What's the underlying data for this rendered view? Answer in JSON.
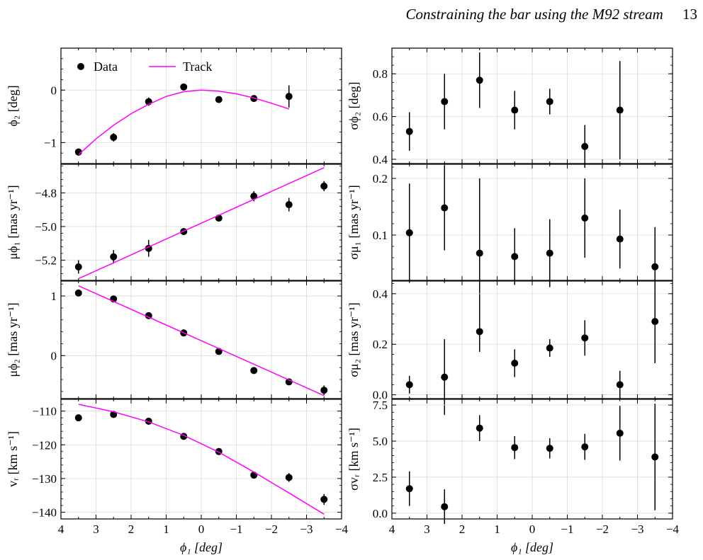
{
  "header": {
    "title": "Constraining the bar using the M92 stream",
    "page_number": "13"
  },
  "colors": {
    "data": "#000000",
    "track": "#ff00ff",
    "grid": "#d9d9d9"
  },
  "legend": {
    "data_label": "Data",
    "track_label": "Track",
    "placement": "top-left"
  },
  "chart_data": [
    {
      "type": "scatter",
      "id": "phi2",
      "ylabel": "ϕ₂ [deg]",
      "xlabel": "",
      "xlim": [
        4,
        -4
      ],
      "ylim": [
        -1.4,
        0.8
      ],
      "yticks": [
        {
          "v": 0,
          "l": "0"
        },
        {
          "v": -1,
          "l": "−1"
        }
      ],
      "series": [
        {
          "name": "Data",
          "kind": "points",
          "x": [
            3.5,
            2.5,
            1.5,
            0.5,
            -0.5,
            -1.5,
            -2.5
          ],
          "y": [
            -1.18,
            -0.9,
            -0.22,
            0.06,
            -0.18,
            -0.16,
            -0.12
          ],
          "err": [
            0.07,
            0.08,
            0.08,
            0.05,
            0.04,
            0.06,
            0.21
          ]
        },
        {
          "name": "Track",
          "kind": "line",
          "x": [
            3.5,
            3.0,
            2.5,
            2.0,
            1.5,
            1.0,
            0.5,
            0.0,
            -0.5,
            -1.0,
            -1.5,
            -2.0,
            -2.5
          ],
          "y": [
            -1.23,
            -0.93,
            -0.67,
            -0.45,
            -0.27,
            -0.12,
            -0.03,
            0.0,
            -0.02,
            -0.07,
            -0.15,
            -0.25,
            -0.36
          ]
        }
      ]
    },
    {
      "type": "scatter",
      "id": "sigma_phi2",
      "ylabel": "σϕ₂ [deg]",
      "xlabel": "",
      "xlim": [
        4,
        -4
      ],
      "ylim": [
        0.38,
        0.92
      ],
      "yticks": [
        {
          "v": 0.4,
          "l": "0.4"
        },
        {
          "v": 0.6,
          "l": "0.6"
        },
        {
          "v": 0.8,
          "l": "0.8"
        }
      ],
      "series": [
        {
          "name": "Data",
          "kind": "points",
          "x": [
            3.5,
            2.5,
            1.5,
            0.5,
            -0.5,
            -1.5,
            -2.5
          ],
          "y": [
            0.53,
            0.67,
            0.77,
            0.63,
            0.67,
            0.46,
            0.63
          ],
          "err": [
            0.09,
            0.13,
            0.13,
            0.09,
            0.06,
            0.1,
            0.23
          ]
        }
      ]
    },
    {
      "type": "scatter",
      "id": "mu_phi1",
      "ylabel": "μϕ₁ [mas yr⁻¹]",
      "xlabel": "",
      "xlim": [
        4,
        -4
      ],
      "ylim": [
        -5.32,
        -4.63
      ],
      "yticks": [
        {
          "v": -4.8,
          "l": "−4.8"
        },
        {
          "v": -5.0,
          "l": "−5.0"
        },
        {
          "v": -5.2,
          "l": "−5.2"
        }
      ],
      "series": [
        {
          "name": "Data",
          "kind": "points",
          "x": [
            3.5,
            2.5,
            1.5,
            0.5,
            -0.5,
            -1.5,
            -2.5,
            -3.5
          ],
          "y": [
            -5.24,
            -5.18,
            -5.13,
            -5.03,
            -4.95,
            -4.82,
            -4.87,
            -4.76
          ],
          "err": [
            0.04,
            0.04,
            0.05,
            0.02,
            0.02,
            0.03,
            0.04,
            0.03
          ]
        },
        {
          "name": "Track",
          "kind": "line",
          "x": [
            3.5,
            -3.5
          ],
          "y": [
            -5.31,
            -4.65
          ]
        }
      ]
    },
    {
      "type": "scatter",
      "id": "sigma_mu1",
      "ylabel": "σμ₁ [mas yr⁻¹]",
      "xlabel": "",
      "xlim": [
        4,
        -4
      ],
      "ylim": [
        0.02,
        0.225
      ],
      "yticks": [
        {
          "v": 0.1,
          "l": "0.1"
        },
        {
          "v": 0.2,
          "l": "0.2"
        }
      ],
      "series": [
        {
          "name": "Data",
          "kind": "points",
          "x": [
            3.5,
            2.5,
            1.5,
            0.5,
            -0.5,
            -1.5,
            -2.5,
            -3.5
          ],
          "y": [
            0.104,
            0.148,
            0.068,
            0.062,
            0.068,
            0.13,
            0.093,
            0.044
          ],
          "err": [
            0.087,
            0.075,
            0.132,
            0.05,
            0.06,
            0.07,
            0.052,
            0.07
          ]
        }
      ]
    },
    {
      "type": "scatter",
      "id": "mu_phi2",
      "ylabel": "μϕ₂ [mas yr⁻¹]",
      "xlabel": "",
      "xlim": [
        4,
        -4
      ],
      "ylim": [
        -0.72,
        1.25
      ],
      "yticks": [
        {
          "v": 1,
          "l": "1"
        },
        {
          "v": 0,
          "l": "0"
        }
      ],
      "series": [
        {
          "name": "Data",
          "kind": "points",
          "x": [
            3.5,
            2.5,
            1.5,
            0.5,
            -0.5,
            -1.5,
            -2.5,
            -3.5
          ],
          "y": [
            1.05,
            0.95,
            0.67,
            0.38,
            0.07,
            -0.25,
            -0.44,
            -0.58
          ],
          "err": [
            0.04,
            0.03,
            0.03,
            0.03,
            0.03,
            0.03,
            0.03,
            0.08
          ]
        },
        {
          "name": "Track",
          "kind": "line",
          "x": [
            3.5,
            -3.5
          ],
          "y": [
            1.17,
            -0.67
          ]
        }
      ]
    },
    {
      "type": "scatter",
      "id": "sigma_mu2",
      "ylabel": "σμ₂ [mas yr⁻¹]",
      "xlabel": "",
      "xlim": [
        4,
        -4
      ],
      "ylim": [
        -0.015,
        0.45
      ],
      "yticks": [
        {
          "v": 0.0,
          "l": "0.0"
        },
        {
          "v": 0.2,
          "l": "0.2"
        },
        {
          "v": 0.4,
          "l": "0.4"
        }
      ],
      "series": [
        {
          "name": "Data",
          "kind": "points",
          "x": [
            3.5,
            2.5,
            1.5,
            0.5,
            -0.5,
            -1.5,
            -2.5,
            -3.5
          ],
          "y": [
            0.04,
            0.07,
            0.25,
            0.125,
            0.185,
            0.225,
            0.04,
            0.29
          ],
          "err": [
            0.035,
            0.15,
            0.08,
            0.055,
            0.035,
            0.07,
            0.055,
            0.165
          ]
        }
      ]
    },
    {
      "type": "scatter",
      "id": "vr",
      "ylabel": "vᵣ [km s⁻¹]",
      "xlabel": "ϕ₁ [deg]",
      "xlim": [
        4,
        -4
      ],
      "ylim": [
        -142,
        -106.5
      ],
      "yticks": [
        {
          "v": -110,
          "l": "−110"
        },
        {
          "v": -120,
          "l": "−120"
        },
        {
          "v": -130,
          "l": "−130"
        },
        {
          "v": -140,
          "l": "−140"
        }
      ],
      "xticks": [
        {
          "v": 4,
          "l": "4"
        },
        {
          "v": 3,
          "l": "3"
        },
        {
          "v": 2,
          "l": "2"
        },
        {
          "v": 1,
          "l": "1"
        },
        {
          "v": 0,
          "l": "0"
        },
        {
          "v": -1,
          "l": "−1"
        },
        {
          "v": -2,
          "l": "−2"
        },
        {
          "v": -3,
          "l": "−3"
        },
        {
          "v": -4,
          "l": "−4"
        }
      ],
      "series": [
        {
          "name": "Data",
          "kind": "points",
          "x": [
            3.5,
            2.5,
            1.5,
            0.5,
            -0.5,
            -1.5,
            -2.5,
            -3.5
          ],
          "y": [
            -112,
            -111,
            -113,
            -117.5,
            -122,
            -129,
            -129.7,
            -136.2
          ],
          "err": [
            0.6,
            0.7,
            0.6,
            0.6,
            0.6,
            0.8,
            1.3,
            1.6
          ]
        },
        {
          "name": "Track",
          "kind": "line",
          "x": [
            3.5,
            2.5,
            1.5,
            0.5,
            -0.5,
            -1.5,
            -2.5,
            -3.5
          ],
          "y": [
            -108,
            -110.2,
            -113.2,
            -117.2,
            -122.2,
            -128.1,
            -134.3,
            -140.6
          ]
        }
      ]
    },
    {
      "type": "scatter",
      "id": "sigma_vr",
      "ylabel": "σvᵣ [km s⁻¹]",
      "xlabel": "ϕ₁ [deg]",
      "xlim": [
        4,
        -4
      ],
      "ylim": [
        -0.4,
        7.9
      ],
      "yticks": [
        {
          "v": 0.0,
          "l": "0.0"
        },
        {
          "v": 2.5,
          "l": "2.5"
        },
        {
          "v": 5.0,
          "l": "5.0"
        },
        {
          "v": 7.5,
          "l": "7.5"
        }
      ],
      "xticks": [
        {
          "v": 4,
          "l": "4"
        },
        {
          "v": 3,
          "l": "3"
        },
        {
          "v": 2,
          "l": "2"
        },
        {
          "v": 1,
          "l": "1"
        },
        {
          "v": 0,
          "l": "0"
        },
        {
          "v": -1,
          "l": "−1"
        },
        {
          "v": -2,
          "l": "−2"
        },
        {
          "v": -3,
          "l": "−3"
        },
        {
          "v": -4,
          "l": "−4"
        }
      ],
      "series": [
        {
          "name": "Data",
          "kind": "points",
          "x": [
            3.5,
            2.5,
            1.5,
            0.5,
            -0.5,
            -1.5,
            -2.5,
            -3.5
          ],
          "y": [
            1.7,
            0.45,
            5.9,
            4.55,
            4.5,
            4.6,
            5.55,
            3.9
          ],
          "err": [
            1.2,
            1.2,
            0.9,
            0.8,
            0.7,
            0.9,
            1.9,
            3.7
          ]
        }
      ]
    }
  ]
}
